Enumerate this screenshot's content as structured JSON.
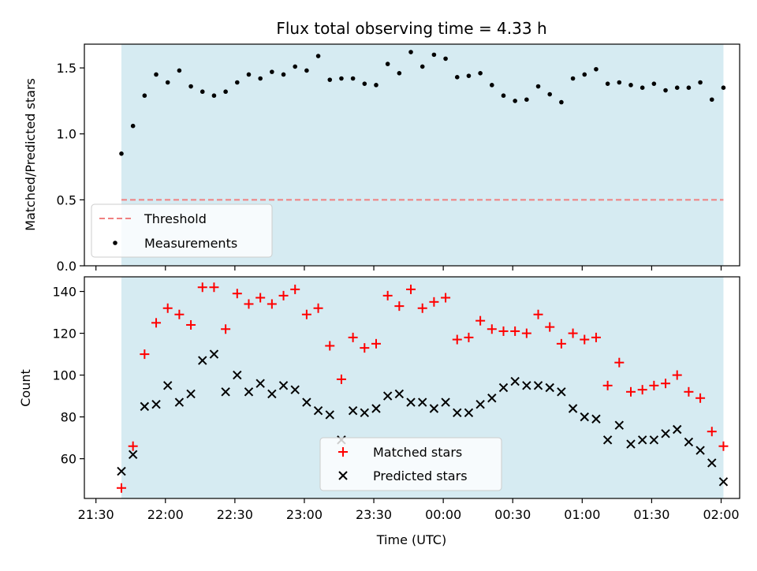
{
  "chart_data": [
    {
      "type": "scatter",
      "title": "Flux total observing time = 4.33 h",
      "xlabel": "",
      "ylabel": "Matched/Predicted stars",
      "ylim": [
        0,
        1.68
      ],
      "yticks": [
        "0.0",
        "0.5",
        "1.0",
        "1.5"
      ],
      "ytick_values": [
        0.0,
        0.5,
        1.0,
        1.5
      ],
      "shaded_region": {
        "x_start": "21:41",
        "x_end": "02:01",
        "color": "#add8e6"
      },
      "threshold": {
        "name": "Threshold",
        "value": 0.5,
        "color": "#f08080"
      },
      "series": [
        {
          "name": "Measurements",
          "marker": "dot",
          "color": "#000000",
          "x": [
            "21:41",
            "21:46",
            "21:51",
            "21:56",
            "22:01",
            "22:06",
            "22:11",
            "22:16",
            "22:21",
            "22:26",
            "22:31",
            "22:36",
            "22:41",
            "22:46",
            "22:51",
            "22:56",
            "23:01",
            "23:06",
            "23:11",
            "23:16",
            "23:21",
            "23:26",
            "23:31",
            "23:36",
            "23:41",
            "23:46",
            "23:51",
            "23:56",
            "00:01",
            "00:06",
            "00:11",
            "00:16",
            "00:21",
            "00:26",
            "00:31",
            "00:36",
            "00:41",
            "00:46",
            "00:51",
            "00:56",
            "01:01",
            "01:06",
            "01:11",
            "01:16",
            "01:21",
            "01:26",
            "01:31",
            "01:36",
            "01:41",
            "01:46",
            "01:51",
            "01:56",
            "02:01"
          ],
          "values": [
            0.85,
            1.06,
            1.29,
            1.45,
            1.39,
            1.48,
            1.36,
            1.32,
            1.29,
            1.32,
            1.39,
            1.45,
            1.42,
            1.47,
            1.45,
            1.51,
            1.48,
            1.59,
            1.41,
            1.42,
            1.42,
            1.38,
            1.37,
            1.53,
            1.46,
            1.62,
            1.51,
            1.6,
            1.57,
            1.43,
            1.44,
            1.46,
            1.37,
            1.29,
            1.25,
            1.26,
            1.36,
            1.3,
            1.24,
            1.42,
            1.45,
            1.49,
            1.38,
            1.39,
            1.37,
            1.35,
            1.38,
            1.33,
            1.35,
            1.35,
            1.39,
            1.26,
            1.35
          ]
        }
      ],
      "legend": [
        "Threshold",
        "Measurements"
      ],
      "legend_location": "lower-left"
    },
    {
      "type": "scatter",
      "xlabel": "Time (UTC)",
      "ylabel": "Count",
      "ylim": [
        41,
        147
      ],
      "yticks": [
        "60",
        "80",
        "100",
        "120",
        "140"
      ],
      "ytick_values": [
        60,
        80,
        100,
        120,
        140
      ],
      "xlim": [
        "21:25",
        "02:08"
      ],
      "xticks": [
        "21:30",
        "22:00",
        "22:30",
        "23:00",
        "23:30",
        "00:00",
        "00:30",
        "01:00",
        "01:30",
        "02:00"
      ],
      "shaded_region": {
        "x_start": "21:41",
        "x_end": "02:01",
        "color": "#add8e6"
      },
      "series": [
        {
          "name": "Matched stars",
          "marker": "plus",
          "color": "#ff0000",
          "x": [
            "21:41",
            "21:46",
            "21:51",
            "21:56",
            "22:01",
            "22:06",
            "22:11",
            "22:16",
            "22:21",
            "22:26",
            "22:31",
            "22:36",
            "22:41",
            "22:46",
            "22:51",
            "22:56",
            "23:01",
            "23:06",
            "23:11",
            "23:16",
            "23:21",
            "23:26",
            "23:31",
            "23:36",
            "23:41",
            "23:46",
            "23:51",
            "23:56",
            "00:01",
            "00:06",
            "00:11",
            "00:16",
            "00:21",
            "00:26",
            "00:31",
            "00:36",
            "00:41",
            "00:46",
            "00:51",
            "00:56",
            "01:01",
            "01:06",
            "01:11",
            "01:16",
            "01:21",
            "01:26",
            "01:31",
            "01:36",
            "01:41",
            "01:46",
            "01:51",
            "01:56",
            "02:01"
          ],
          "values": [
            46,
            66,
            110,
            125,
            132,
            129,
            124,
            142,
            142,
            122,
            139,
            134,
            137,
            134,
            138,
            141,
            129,
            132,
            114,
            98,
            118,
            113,
            115,
            138,
            133,
            141,
            132,
            135,
            137,
            117,
            118,
            126,
            122,
            121,
            121,
            120,
            129,
            123,
            115,
            120,
            117,
            118,
            95,
            106,
            92,
            93,
            95,
            96,
            100,
            92,
            89,
            73,
            66
          ]
        },
        {
          "name": "Predicted stars",
          "marker": "x",
          "color": "#000000",
          "x": [
            "21:41",
            "21:46",
            "21:51",
            "21:56",
            "22:01",
            "22:06",
            "22:11",
            "22:16",
            "22:21",
            "22:26",
            "22:31",
            "22:36",
            "22:41",
            "22:46",
            "22:51",
            "22:56",
            "23:01",
            "23:06",
            "23:11",
            "23:16",
            "23:21",
            "23:26",
            "23:31",
            "23:36",
            "23:41",
            "23:46",
            "23:51",
            "23:56",
            "00:01",
            "00:06",
            "00:11",
            "00:16",
            "00:21",
            "00:26",
            "00:31",
            "00:36",
            "00:41",
            "00:46",
            "00:51",
            "00:56",
            "01:01",
            "01:06",
            "01:11",
            "01:16",
            "01:21",
            "01:26",
            "01:31",
            "01:36",
            "01:41",
            "01:46",
            "01:51",
            "01:56",
            "02:01"
          ],
          "values": [
            54,
            62,
            85,
            86,
            95,
            87,
            91,
            107,
            110,
            92,
            100,
            92,
            96,
            91,
            95,
            93,
            87,
            83,
            81,
            69,
            83,
            82,
            84,
            90,
            91,
            87,
            87,
            84,
            87,
            82,
            82,
            86,
            89,
            94,
            97,
            95,
            95,
            94,
            92,
            84,
            80,
            79,
            69,
            76,
            67,
            69,
            69,
            72,
            74,
            68,
            64,
            58,
            49
          ]
        }
      ],
      "legend": [
        "Matched stars",
        "Predicted stars"
      ],
      "legend_location": "lower-center"
    }
  ]
}
